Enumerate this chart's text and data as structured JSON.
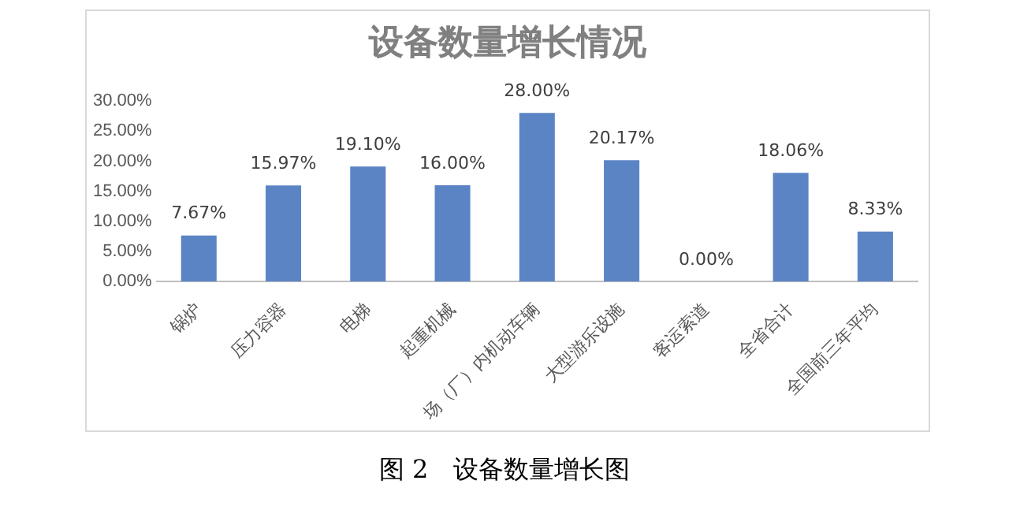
{
  "chart_data": {
    "type": "bar",
    "title": "设备数量增长情况",
    "categories": [
      "锅炉",
      "压力容器",
      "电梯",
      "起重机械",
      "场（厂）内机动车辆",
      "大型游乐设施",
      "客运索道",
      "全省合计",
      "全国前三年平均"
    ],
    "values": [
      7.67,
      15.97,
      19.1,
      16.0,
      28.0,
      20.17,
      0.0,
      18.06,
      8.33
    ],
    "value_labels": [
      "7.67%",
      "15.97%",
      "19.10%",
      "16.00%",
      "28.00%",
      "20.17%",
      "0.00%",
      "18.06%",
      "8.33%"
    ],
    "color": "#5b84c4",
    "ylim": [
      0,
      30
    ],
    "yticks": [
      {
        "value": 0,
        "label": "0.00%"
      },
      {
        "value": 5,
        "label": "5.00%"
      },
      {
        "value": 10,
        "label": "10.00%"
      },
      {
        "value": 15,
        "label": "15.00%"
      },
      {
        "value": 20,
        "label": "20.00%"
      },
      {
        "value": 25,
        "label": "25.00%"
      },
      {
        "value": 30,
        "label": "30.00%"
      }
    ],
    "grid": false,
    "legend": false,
    "annotations": [
      "图 2　设备数量增长图"
    ]
  }
}
